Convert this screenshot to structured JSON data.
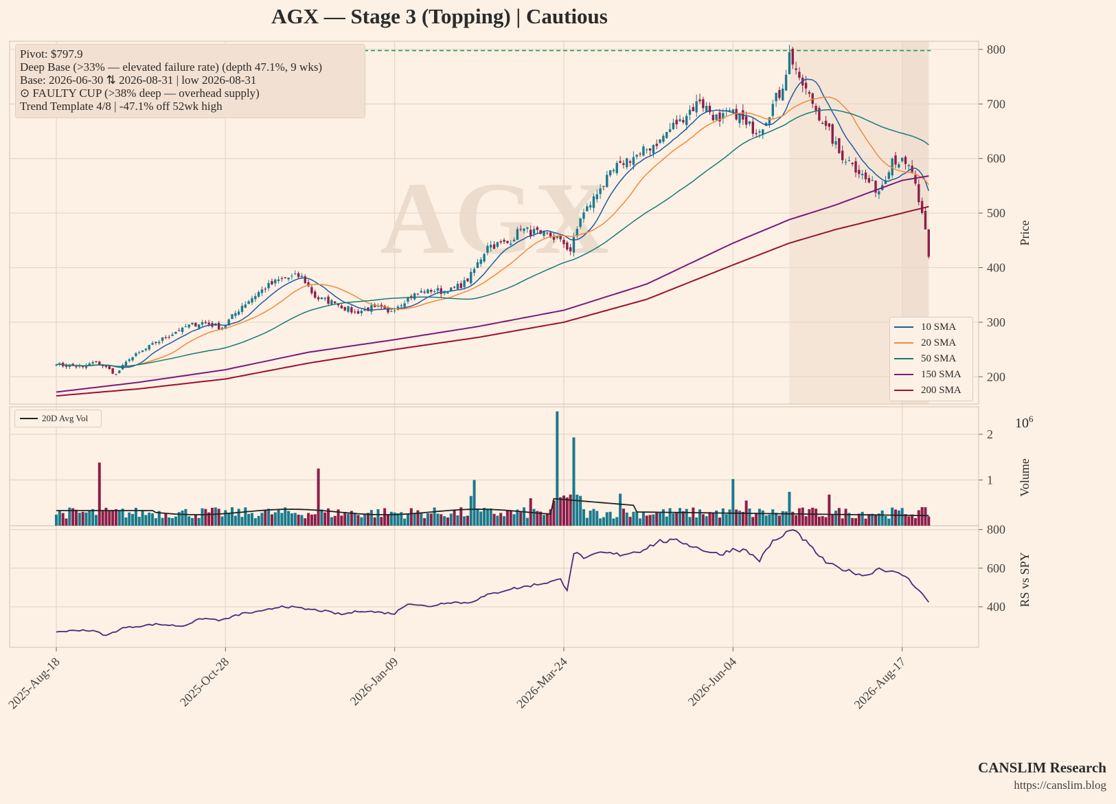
{
  "title": "AGX  —  Stage 3 (Topping)  |  Cautious",
  "info_lines": [
    "Pivot: $797.9",
    "Deep Base (>33% — elevated failure rate)  (depth 47.1%, 9 wks)",
    "Base: 2026-06-30 ⇅ 2026-08-31  |  low 2026-08-31",
    "⊙ FAULTY CUP (>38% deep — overhead supply)",
    "Trend Template 4/8  |  -47.1% off 52wk high"
  ],
  "watermark": "AGX",
  "footer": {
    "brand": "CANSLIM Research",
    "url": "https://canslim.blog"
  },
  "colors": {
    "background": "#fdf0e4",
    "up": "#1b7a8c",
    "down": "#8c1f4a",
    "pivot": "#1f9a55",
    "sma10": "#1f5aa0",
    "sma20": "#f08a3a",
    "sma50": "#157a7a",
    "sma150": "#7a1a7a",
    "sma200": "#9a1034",
    "rs": "#4a2a7a",
    "shade": "#f2e4d8"
  },
  "chart_data": [
    {
      "type": "candlestick",
      "ylabel": "Price",
      "ylim": [
        150,
        815
      ],
      "yticks": [
        200,
        300,
        400,
        500,
        600,
        700,
        800
      ],
      "x_tick_labels": [
        "2025-Aug-18",
        "2025-Oct-28",
        "2026-Jan-09",
        "2026-Mar-24",
        "2026-Jun-04",
        "2026-Aug-17"
      ],
      "x_tick_indices": [
        0,
        51,
        102,
        153,
        204,
        255
      ],
      "n_sessions": 264,
      "pivot": 797.9,
      "base_shading": [
        {
          "from_index": 221,
          "to_index": 263
        },
        {
          "from_index": 255,
          "to_index": 263
        }
      ],
      "close_anchors": [
        [
          0,
          222
        ],
        [
          8,
          218
        ],
        [
          12,
          228
        ],
        [
          18,
          205
        ],
        [
          22,
          232
        ],
        [
          30,
          262
        ],
        [
          38,
          290
        ],
        [
          44,
          300
        ],
        [
          50,
          290
        ],
        [
          56,
          330
        ],
        [
          62,
          360
        ],
        [
          68,
          380
        ],
        [
          74,
          385
        ],
        [
          78,
          345
        ],
        [
          84,
          335
        ],
        [
          90,
          318
        ],
        [
          96,
          328
        ],
        [
          100,
          318
        ],
        [
          106,
          345
        ],
        [
          112,
          360
        ],
        [
          118,
          355
        ],
        [
          124,
          375
        ],
        [
          130,
          440
        ],
        [
          136,
          445
        ],
        [
          140,
          470
        ],
        [
          146,
          462
        ],
        [
          152,
          452
        ],
        [
          155,
          430
        ],
        [
          158,
          490
        ],
        [
          164,
          545
        ],
        [
          170,
          592
        ],
        [
          176,
          608
        ],
        [
          182,
          635
        ],
        [
          188,
          672
        ],
        [
          194,
          705
        ],
        [
          200,
          668
        ],
        [
          204,
          690
        ],
        [
          208,
          662
        ],
        [
          212,
          650
        ],
        [
          216,
          700
        ],
        [
          219,
          728
        ],
        [
          221,
          795
        ],
        [
          224,
          748
        ],
        [
          228,
          700
        ],
        [
          232,
          660
        ],
        [
          236,
          610
        ],
        [
          240,
          590
        ],
        [
          244,
          562
        ],
        [
          248,
          540
        ],
        [
          252,
          600
        ],
        [
          256,
          590
        ],
        [
          258,
          575
        ],
        [
          260,
          520
        ],
        [
          262,
          470
        ],
        [
          263,
          420
        ]
      ],
      "series": [
        {
          "name": "10 SMA",
          "period": 10
        },
        {
          "name": "20 SMA",
          "period": 20
        },
        {
          "name": "50 SMA",
          "period": 50
        },
        {
          "name": "150 SMA",
          "anchors": [
            [
              0,
              172
            ],
            [
              25,
              190
            ],
            [
              51,
              213
            ],
            [
              76,
              245
            ],
            [
              102,
              268
            ],
            [
              127,
              292
            ],
            [
              153,
              322
            ],
            [
              178,
              370
            ],
            [
              204,
              445
            ],
            [
              221,
              488
            ],
            [
              235,
              515
            ],
            [
              255,
              560
            ],
            [
              263,
              568
            ]
          ]
        },
        {
          "name": "200 SMA",
          "anchors": [
            [
              0,
              165
            ],
            [
              25,
              178
            ],
            [
              51,
              196
            ],
            [
              76,
              225
            ],
            [
              102,
              250
            ],
            [
              127,
              272
            ],
            [
              153,
              300
            ],
            [
              178,
              342
            ],
            [
              204,
              405
            ],
            [
              221,
              445
            ],
            [
              235,
              470
            ],
            [
              255,
              500
            ],
            [
              263,
              512
            ]
          ]
        }
      ]
    },
    {
      "type": "bar",
      "ylabel": "Volume",
      "axis_multiplier": "10^6",
      "ylim": [
        0,
        2.6
      ],
      "yticks": [
        1,
        2
      ],
      "series": [
        {
          "name": "20D Avg Vol",
          "type": "line"
        }
      ],
      "base_volume_millions": 0.28,
      "volume_spikes_millions": [
        [
          13,
          1.38
        ],
        [
          79,
          1.25
        ],
        [
          125,
          0.65
        ],
        [
          126,
          1.0
        ],
        [
          143,
          0.6
        ],
        [
          150,
          0.55
        ],
        [
          151,
          2.5
        ],
        [
          156,
          1.93
        ],
        [
          170,
          0.7
        ],
        [
          204,
          1.02
        ],
        [
          208,
          0.55
        ],
        [
          221,
          0.74
        ],
        [
          233,
          0.68
        ]
      ],
      "avg_vol_millions_start": 0.33,
      "avg_vol_millions_mar24": 0.59,
      "avg_vol_millions_end": 0.22
    },
    {
      "type": "line",
      "ylabel": "RS vs SPY",
      "ylim": [
        190,
        820
      ],
      "yticks": [
        400,
        600,
        800
      ],
      "rs_anchors": [
        [
          0,
          270
        ],
        [
          8,
          280
        ],
        [
          12,
          272
        ],
        [
          15,
          250
        ],
        [
          20,
          290
        ],
        [
          30,
          310
        ],
        [
          38,
          300
        ],
        [
          44,
          340
        ],
        [
          50,
          330
        ],
        [
          56,
          365
        ],
        [
          62,
          375
        ],
        [
          68,
          405
        ],
        [
          74,
          390
        ],
        [
          80,
          380
        ],
        [
          86,
          360
        ],
        [
          92,
          380
        ],
        [
          98,
          370
        ],
        [
          102,
          365
        ],
        [
          106,
          420
        ],
        [
          112,
          400
        ],
        [
          118,
          425
        ],
        [
          124,
          420
        ],
        [
          130,
          460
        ],
        [
          136,
          490
        ],
        [
          140,
          500
        ],
        [
          146,
          520
        ],
        [
          152,
          540
        ],
        [
          154,
          490
        ],
        [
          156,
          680
        ],
        [
          160,
          650
        ],
        [
          164,
          680
        ],
        [
          170,
          670
        ],
        [
          176,
          690
        ],
        [
          182,
          740
        ],
        [
          188,
          740
        ],
        [
          194,
          700
        ],
        [
          200,
          670
        ],
        [
          204,
          700
        ],
        [
          208,
          690
        ],
        [
          212,
          640
        ],
        [
          216,
          740
        ],
        [
          219,
          760
        ],
        [
          221,
          805
        ],
        [
          224,
          770
        ],
        [
          228,
          700
        ],
        [
          232,
          630
        ],
        [
          236,
          600
        ],
        [
          240,
          580
        ],
        [
          244,
          560
        ],
        [
          248,
          600
        ],
        [
          252,
          580
        ],
        [
          256,
          560
        ],
        [
          258,
          520
        ],
        [
          260,
          490
        ],
        [
          262,
          445
        ],
        [
          263,
          420
        ]
      ]
    }
  ],
  "legend": [
    "10 SMA",
    "20 SMA",
    "50 SMA",
    "150 SMA",
    "200 SMA"
  ],
  "vol_legend": "20D Avg Vol"
}
